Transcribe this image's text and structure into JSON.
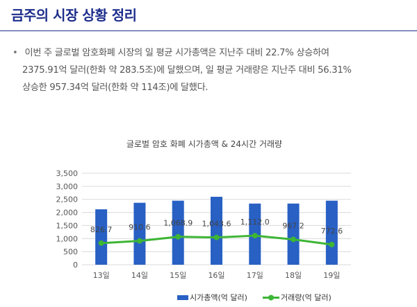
{
  "page": {
    "title": "금주의 시장 상황 정리",
    "bullet": "•",
    "summary_lines": [
      "이번 주 글로벌 암호화폐 시장의 일 평균 시가총액은 지난주 대비 22.7% 상승하여",
      "2375.91억 달러(한화 약 283.5조)에 달했으며, 일 평균 거래량은 지난주 대비 56.31%",
      "상승한 957.34억 달러(한화 약 114조)에 달했다."
    ]
  },
  "chart_data": {
    "type": "bar",
    "title": "글로벌 암호 화폐 시가총액 & 24시간 거래량",
    "categories": [
      "13일",
      "14일",
      "15일",
      "16일",
      "17일",
      "18일",
      "19일"
    ],
    "ylim": [
      0,
      3500
    ],
    "yticks": [
      0,
      500,
      1000,
      1500,
      2000,
      2500,
      3000,
      3500
    ],
    "ytick_labels": [
      "0",
      "500",
      "1,000",
      "1,500",
      "2,000",
      "2,500",
      "3,000",
      "3,500"
    ],
    "grid": true,
    "legend_position": "bottom",
    "series": [
      {
        "name": "시가총액(억 달러)",
        "type": "bar",
        "color": "#2860c4",
        "values": [
          2120,
          2370,
          2450,
          2600,
          2340,
          2340,
          2450
        ]
      },
      {
        "name": "거래량(억 달러)",
        "type": "line",
        "color": "#3db535",
        "values": [
          826.7,
          910.6,
          1068.9,
          1043.6,
          1112.0,
          967.2,
          772.6
        ],
        "labels": [
          "826.7",
          "910.6",
          "1,068.9",
          "1,043.6",
          "1,112.0",
          "967.2",
          "772.6"
        ]
      }
    ]
  }
}
